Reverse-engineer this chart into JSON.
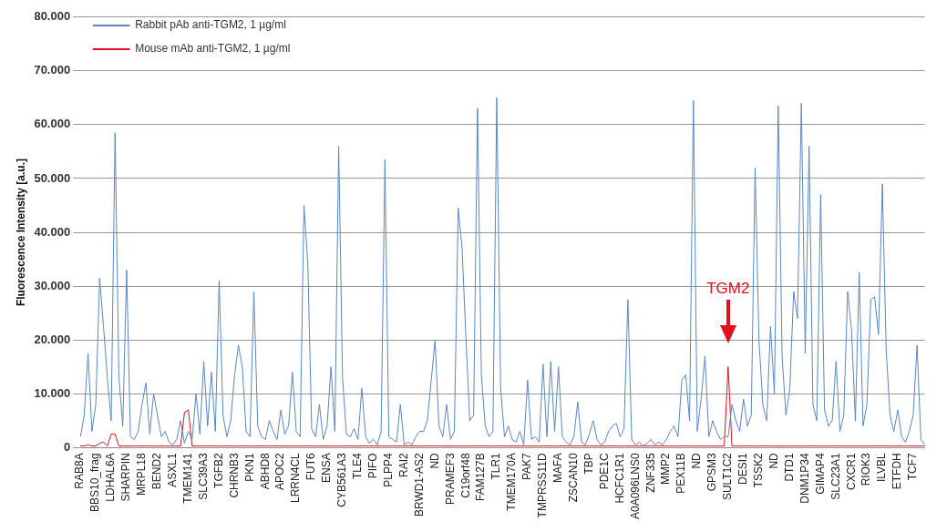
{
  "chart_data": {
    "type": "line",
    "ylabel": "Fluorescence Intensity [a.u.]",
    "categories": [
      "RAB8A",
      null,
      null,
      null,
      "BBS10_frag",
      null,
      null,
      null,
      "LDHAL6A",
      null,
      null,
      null,
      "SHARPIN",
      null,
      null,
      null,
      "MRPL18",
      null,
      null,
      null,
      "BEND2",
      null,
      null,
      null,
      "ASXL1",
      null,
      null,
      null,
      "TMEM141",
      null,
      null,
      null,
      "SLC39A3",
      null,
      null,
      null,
      "TGFB2",
      null,
      null,
      null,
      "CHRNB3",
      null,
      null,
      null,
      "PKN1",
      null,
      null,
      null,
      "ABHD8",
      null,
      null,
      null,
      "APOC2",
      null,
      null,
      null,
      "LRRN4CL",
      null,
      null,
      null,
      "FUT6",
      null,
      null,
      null,
      "ENSA",
      null,
      null,
      null,
      "CYB561A3",
      null,
      null,
      null,
      "TLE4",
      null,
      null,
      null,
      "PIFO",
      null,
      null,
      null,
      "PLPP4",
      null,
      null,
      null,
      "RAI2",
      null,
      null,
      null,
      "BRWD1-AS2",
      null,
      null,
      null,
      "ND",
      null,
      null,
      null,
      "PRAMEF3",
      null,
      null,
      null,
      "C19orf48",
      null,
      null,
      null,
      "FAM127B",
      null,
      null,
      null,
      "TLR1",
      null,
      null,
      null,
      "TMEM170A",
      null,
      null,
      null,
      "PAK7",
      null,
      null,
      null,
      "TMPRSS11D",
      null,
      null,
      null,
      "MAFA",
      null,
      null,
      null,
      "ZSCAN10",
      null,
      null,
      null,
      "TBP",
      null,
      null,
      null,
      "PDE1C",
      null,
      null,
      null,
      "HCFC1R1",
      null,
      null,
      null,
      "A0A096LNS0",
      null,
      null,
      null,
      "ZNF335",
      null,
      null,
      null,
      "MMP2",
      null,
      null,
      null,
      "PEX11B",
      null,
      null,
      null,
      "ND",
      null,
      null,
      null,
      "GPSM3",
      null,
      null,
      null,
      "SULT1C2",
      null,
      null,
      null,
      "DESI1",
      null,
      null,
      null,
      "TSSK2",
      null,
      null,
      null,
      "ND",
      null,
      null,
      null,
      "DTD1",
      null,
      null,
      null,
      "DNM1P34",
      null,
      null,
      null,
      "GIMAP4",
      null,
      null,
      null,
      "SLC23A1",
      null,
      null,
      null,
      "CXCR1",
      null,
      null,
      null,
      "RIOK3",
      null,
      null,
      null,
      "ILVBL",
      null,
      null,
      null,
      "ETFDH",
      null,
      null,
      null,
      "TCF7",
      null,
      null,
      null
    ],
    "series": [
      {
        "name": "Rabbit pAb anti-TGM2, 1 µg/ml",
        "color": "#5b87c0",
        "values": [
          2000,
          6000,
          17500,
          3000,
          8000,
          31500,
          22500,
          13000,
          5000,
          58500,
          13000,
          4000,
          33000,
          2000,
          1500,
          3000,
          8000,
          12000,
          2500,
          10000,
          6000,
          2000,
          3000,
          1000,
          500,
          1500,
          5000,
          800,
          3000,
          1500,
          10000,
          2500,
          16000,
          4000,
          14000,
          3000,
          31000,
          6000,
          2000,
          5000,
          13500,
          19000,
          15000,
          3000,
          2000,
          29000,
          4000,
          2000,
          1500,
          5000,
          3000,
          1500,
          7000,
          2500,
          4000,
          14000,
          3000,
          2000,
          45000,
          34000,
          3500,
          2000,
          8000,
          1500,
          4000,
          15000,
          3000,
          56000,
          13000,
          2500,
          2000,
          3500,
          1500,
          11000,
          2000,
          800,
          1500,
          500,
          3000,
          53500,
          2000,
          1500,
          1000,
          8000,
          500,
          1000,
          500,
          2000,
          3000,
          3000,
          5000,
          12500,
          20000,
          4000,
          2000,
          8000,
          1500,
          3000,
          44500,
          37000,
          20500,
          5000,
          6000,
          63000,
          13500,
          4000,
          2000,
          3000,
          65000,
          11000,
          2000,
          4000,
          1500,
          1000,
          3000,
          500,
          12500,
          1500,
          2000,
          1000,
          15500,
          2000,
          16000,
          3000,
          15000,
          2000,
          1000,
          500,
          2000,
          8500,
          1000,
          500,
          2500,
          5000,
          1500,
          500,
          1000,
          3000,
          4000,
          4500,
          2000,
          3500,
          27500,
          1500,
          500,
          1000,
          300,
          800,
          1500,
          500,
          1000,
          500,
          1500,
          3000,
          4000,
          2000,
          12500,
          13500,
          5000,
          64500,
          3000,
          9000,
          17000,
          2000,
          5000,
          3000,
          1500,
          2000,
          2000,
          8000,
          5000,
          3000,
          9000,
          4000,
          6000,
          52000,
          20000,
          8000,
          5000,
          22500,
          10000,
          63500,
          17000,
          6000,
          11000,
          29000,
          24000,
          64000,
          17500,
          56000,
          8000,
          5000,
          47000,
          7000,
          4000,
          5000,
          16000,
          3000,
          6000,
          29000,
          22000,
          5000,
          32500,
          4000,
          8000,
          27500,
          28000,
          21000,
          49000,
          18000,
          6000,
          3000,
          7000,
          2000,
          1000,
          3000,
          6000,
          19000,
          1500,
          500
        ]
      },
      {
        "name": "Mouse mAb anti-TGM2, 1 µg/ml",
        "color": "#e0101e",
        "values": [
          300,
          300,
          500,
          300,
          300,
          800,
          1000,
          300,
          2500,
          2500,
          300,
          300,
          300,
          300,
          300,
          300,
          300,
          300,
          300,
          300,
          300,
          300,
          300,
          300,
          300,
          300,
          300,
          6500,
          7000,
          300,
          300,
          300,
          300,
          300,
          300,
          300,
          300,
          300,
          300,
          300,
          300,
          300,
          300,
          300,
          300,
          300,
          300,
          300,
          300,
          300,
          300,
          300,
          300,
          300,
          300,
          300,
          300,
          300,
          300,
          300,
          300,
          300,
          300,
          300,
          300,
          300,
          300,
          300,
          300,
          300,
          300,
          300,
          300,
          300,
          300,
          300,
          300,
          300,
          300,
          300,
          300,
          300,
          300,
          300,
          300,
          300,
          300,
          300,
          300,
          300,
          300,
          300,
          300,
          300,
          300,
          300,
          300,
          300,
          300,
          300,
          300,
          300,
          300,
          300,
          300,
          300,
          300,
          300,
          300,
          300,
          300,
          300,
          300,
          300,
          300,
          300,
          300,
          300,
          300,
          300,
          300,
          300,
          300,
          300,
          300,
          300,
          300,
          300,
          300,
          300,
          300,
          300,
          300,
          300,
          300,
          300,
          300,
          300,
          300,
          300,
          300,
          300,
          300,
          300,
          300,
          300,
          300,
          300,
          300,
          300,
          300,
          300,
          300,
          300,
          300,
          300,
          300,
          300,
          300,
          300,
          300,
          300,
          300,
          300,
          300,
          300,
          300,
          300,
          15000,
          300,
          300,
          300,
          300,
          300,
          300,
          300,
          300,
          300,
          300,
          300,
          300,
          300,
          300,
          300,
          300,
          300,
          300,
          300,
          300,
          300,
          300,
          300,
          300,
          300,
          300,
          300,
          300,
          300,
          300,
          300,
          300,
          300,
          300,
          300,
          300,
          300,
          300,
          300,
          300,
          300,
          300,
          300,
          300,
          300,
          300,
          300,
          300,
          300,
          300,
          300
        ]
      }
    ],
    "ylim": [
      0,
      80000
    ],
    "yticks": [
      0,
      {
        "value": 10000,
        "label": "10.000"
      },
      {
        "value": 20000,
        "label": "20.000"
      },
      {
        "value": 30000,
        "label": "30.000"
      },
      {
        "value": 40000,
        "label": "40.000"
      },
      {
        "value": 50000,
        "label": "50.000"
      },
      {
        "value": 60000,
        "label": "60.000"
      },
      {
        "value": 70000,
        "label": "70.000"
      },
      {
        "value": 80000,
        "label": "80.000"
      }
    ],
    "grid": "y",
    "legend": "top left",
    "marker": "none",
    "line_style": "solid",
    "annotations": [
      "TGM2"
    ]
  }
}
